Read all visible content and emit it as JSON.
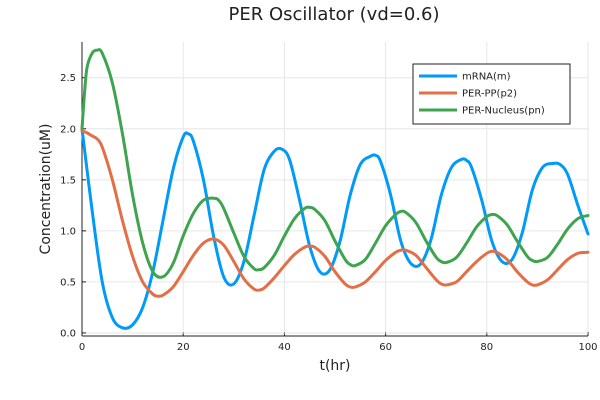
{
  "chart_data": {
    "type": "line",
    "title": "PER Oscillator (vd=0.6)",
    "xlabel": "t(hr)",
    "ylabel": "Concentration(uM)",
    "xlim": [
      0,
      100
    ],
    "ylim": [
      -0.03,
      2.85
    ],
    "xticks": [
      0,
      20,
      40,
      60,
      80,
      100
    ],
    "yticks": [
      0.0,
      0.5,
      1.0,
      1.5,
      2.0,
      2.5
    ],
    "xtick_labels": [
      "0",
      "20",
      "40",
      "60",
      "80",
      "100"
    ],
    "ytick_labels": [
      "0.0",
      "0.5",
      "1.0",
      "1.5",
      "2.0",
      "2.5"
    ],
    "grid": true,
    "legend_position": "top-right",
    "series": [
      {
        "name": "mRNA(m)",
        "color": "#009af9",
        "x": [
          0,
          2,
          4,
          6,
          8,
          10,
          12,
          14,
          16,
          18,
          20,
          21,
          22,
          24,
          26,
          28,
          30,
          32,
          34,
          36,
          38,
          39.5,
          41,
          43,
          45,
          47,
          49,
          51,
          53,
          55,
          57,
          58,
          59,
          61,
          63,
          65,
          67,
          69,
          71,
          73,
          75,
          76,
          77,
          79,
          81,
          83,
          85,
          87,
          89,
          91,
          93,
          94.5,
          96,
          98,
          100
        ],
        "y": [
          2.0,
          1.2,
          0.5,
          0.15,
          0.05,
          0.08,
          0.25,
          0.6,
          1.1,
          1.6,
          1.92,
          1.95,
          1.88,
          1.5,
          0.95,
          0.55,
          0.48,
          0.7,
          1.15,
          1.6,
          1.78,
          1.8,
          1.7,
          1.3,
          0.85,
          0.6,
          0.62,
          0.9,
          1.35,
          1.65,
          1.73,
          1.74,
          1.68,
          1.35,
          0.9,
          0.68,
          0.68,
          0.92,
          1.35,
          1.62,
          1.7,
          1.69,
          1.62,
          1.3,
          0.9,
          0.7,
          0.72,
          0.98,
          1.4,
          1.62,
          1.66,
          1.65,
          1.55,
          1.25,
          0.97
        ]
      },
      {
        "name": "PER-PP(p2)",
        "color": "#e26f46",
        "x": [
          0,
          1,
          2,
          3,
          4,
          6,
          8,
          10,
          12,
          14,
          15,
          16,
          18,
          20,
          22,
          24,
          26,
          28,
          30,
          32,
          34,
          35,
          36,
          38,
          40,
          42,
          44,
          45,
          46,
          48,
          50,
          52,
          53,
          54,
          56,
          58,
          60,
          62,
          63,
          64,
          66,
          68,
          70,
          71,
          72,
          74,
          76,
          78,
          80,
          81,
          82,
          84,
          86,
          88,
          89,
          90,
          92,
          94,
          96,
          98,
          100
        ],
        "y": [
          1.98,
          1.96,
          1.93,
          1.9,
          1.82,
          1.5,
          1.1,
          0.75,
          0.5,
          0.38,
          0.36,
          0.37,
          0.45,
          0.6,
          0.76,
          0.88,
          0.92,
          0.86,
          0.7,
          0.53,
          0.43,
          0.42,
          0.44,
          0.54,
          0.66,
          0.77,
          0.84,
          0.85,
          0.84,
          0.75,
          0.6,
          0.48,
          0.45,
          0.45,
          0.5,
          0.6,
          0.71,
          0.79,
          0.81,
          0.81,
          0.76,
          0.64,
          0.52,
          0.48,
          0.47,
          0.5,
          0.6,
          0.7,
          0.78,
          0.8,
          0.79,
          0.72,
          0.6,
          0.5,
          0.47,
          0.47,
          0.52,
          0.62,
          0.72,
          0.78,
          0.79
        ]
      },
      {
        "name": "PER-Nucleus(pn)",
        "color": "#3ea44e",
        "x": [
          0,
          0.5,
          1,
          2,
          3,
          4,
          6,
          8,
          10,
          12,
          14,
          16,
          18,
          20,
          22,
          24,
          26,
          27,
          28,
          30,
          32,
          34,
          35,
          36,
          38,
          40,
          42,
          44,
          45,
          46,
          48,
          50,
          52,
          53,
          54,
          56,
          58,
          60,
          62,
          63,
          64,
          66,
          68,
          70,
          71,
          72,
          74,
          76,
          78,
          80,
          81,
          82,
          84,
          86,
          88,
          89,
          90,
          92,
          94,
          96,
          98,
          100
        ],
        "y": [
          2.0,
          2.35,
          2.6,
          2.74,
          2.77,
          2.74,
          2.45,
          1.95,
          1.35,
          0.88,
          0.6,
          0.55,
          0.68,
          0.95,
          1.17,
          1.3,
          1.32,
          1.3,
          1.22,
          0.98,
          0.75,
          0.63,
          0.62,
          0.64,
          0.76,
          0.95,
          1.12,
          1.22,
          1.23,
          1.21,
          1.1,
          0.9,
          0.72,
          0.67,
          0.66,
          0.72,
          0.88,
          1.05,
          1.16,
          1.19,
          1.18,
          1.08,
          0.9,
          0.74,
          0.7,
          0.69,
          0.74,
          0.88,
          1.04,
          1.14,
          1.16,
          1.15,
          1.06,
          0.9,
          0.75,
          0.71,
          0.7,
          0.74,
          0.87,
          1.02,
          1.12,
          1.15
        ]
      }
    ]
  }
}
